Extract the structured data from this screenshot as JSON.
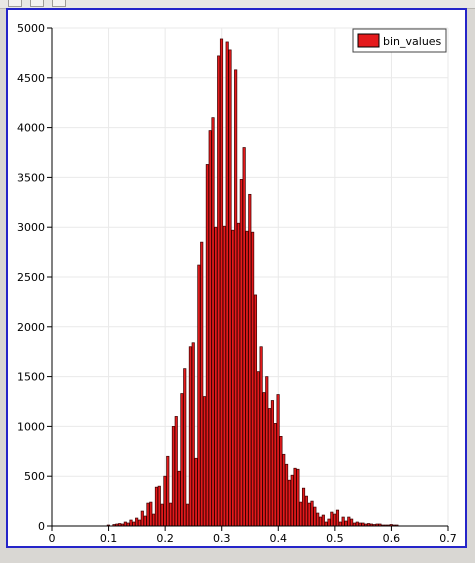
{
  "toolbar": {
    "buttons": [
      "restore",
      "maximize",
      "close"
    ]
  },
  "chart_data": {
    "type": "bar",
    "title": "",
    "xlabel": "",
    "ylabel": "",
    "xlim": [
      0,
      0.7
    ],
    "ylim": [
      0,
      5000
    ],
    "x_ticks": [
      "0",
      "0.1",
      "0.2",
      "0.3",
      "0.4",
      "0.5",
      "0.6",
      "0.7"
    ],
    "y_ticks": [
      "0",
      "500",
      "1000",
      "1500",
      "2000",
      "2500",
      "3000",
      "3500",
      "4000",
      "4500",
      "5000"
    ],
    "bin_width": 0.005,
    "legend": {
      "placement": "top-right",
      "entries": [
        "bin_values"
      ]
    },
    "grid": true,
    "colors": {
      "bar_fill": "#e41a1c",
      "bar_edge": "#3a0000",
      "frame": "#2525c9",
      "grid": "#e9e9e9"
    },
    "series": [
      {
        "name": "bin_values",
        "x": [
          0.1,
          0.11,
          0.115,
          0.12,
          0.125,
          0.13,
          0.135,
          0.14,
          0.145,
          0.15,
          0.155,
          0.16,
          0.165,
          0.17,
          0.175,
          0.18,
          0.185,
          0.19,
          0.195,
          0.2,
          0.205,
          0.21,
          0.215,
          0.22,
          0.225,
          0.23,
          0.235,
          0.24,
          0.245,
          0.25,
          0.255,
          0.26,
          0.265,
          0.27,
          0.275,
          0.28,
          0.285,
          0.29,
          0.295,
          0.3,
          0.305,
          0.31,
          0.315,
          0.32,
          0.325,
          0.33,
          0.335,
          0.34,
          0.345,
          0.35,
          0.355,
          0.36,
          0.365,
          0.37,
          0.375,
          0.38,
          0.385,
          0.39,
          0.395,
          0.4,
          0.405,
          0.41,
          0.415,
          0.42,
          0.425,
          0.43,
          0.435,
          0.44,
          0.445,
          0.45,
          0.455,
          0.46,
          0.465,
          0.47,
          0.475,
          0.48,
          0.485,
          0.49,
          0.495,
          0.5,
          0.505,
          0.51,
          0.515,
          0.52,
          0.525,
          0.53,
          0.535,
          0.54,
          0.545,
          0.55,
          0.555,
          0.56,
          0.565,
          0.57,
          0.575,
          0.58,
          0.585,
          0.59,
          0.595,
          0.6,
          0.605,
          0.61
        ],
        "values": [
          10,
          15,
          20,
          25,
          20,
          40,
          30,
          60,
          40,
          80,
          60,
          150,
          100,
          230,
          240,
          120,
          390,
          400,
          220,
          500,
          700,
          230,
          1000,
          1100,
          550,
          1330,
          1580,
          220,
          1800,
          1840,
          680,
          2620,
          2850,
          1300,
          3630,
          3970,
          4100,
          3000,
          4720,
          4890,
          3010,
          4860,
          4780,
          2970,
          4580,
          3040,
          3480,
          3800,
          2960,
          3330,
          2950,
          2320,
          1550,
          1800,
          1340,
          1500,
          1180,
          1260,
          1030,
          1320,
          900,
          720,
          620,
          460,
          510,
          580,
          570,
          240,
          380,
          300,
          230,
          250,
          190,
          130,
          90,
          110,
          40,
          70,
          140,
          120,
          160,
          40,
          90,
          50,
          90,
          70,
          30,
          40,
          30,
          30,
          20,
          25,
          20,
          15,
          20,
          20,
          10,
          10,
          10,
          15,
          10,
          10
        ]
      }
    ]
  }
}
